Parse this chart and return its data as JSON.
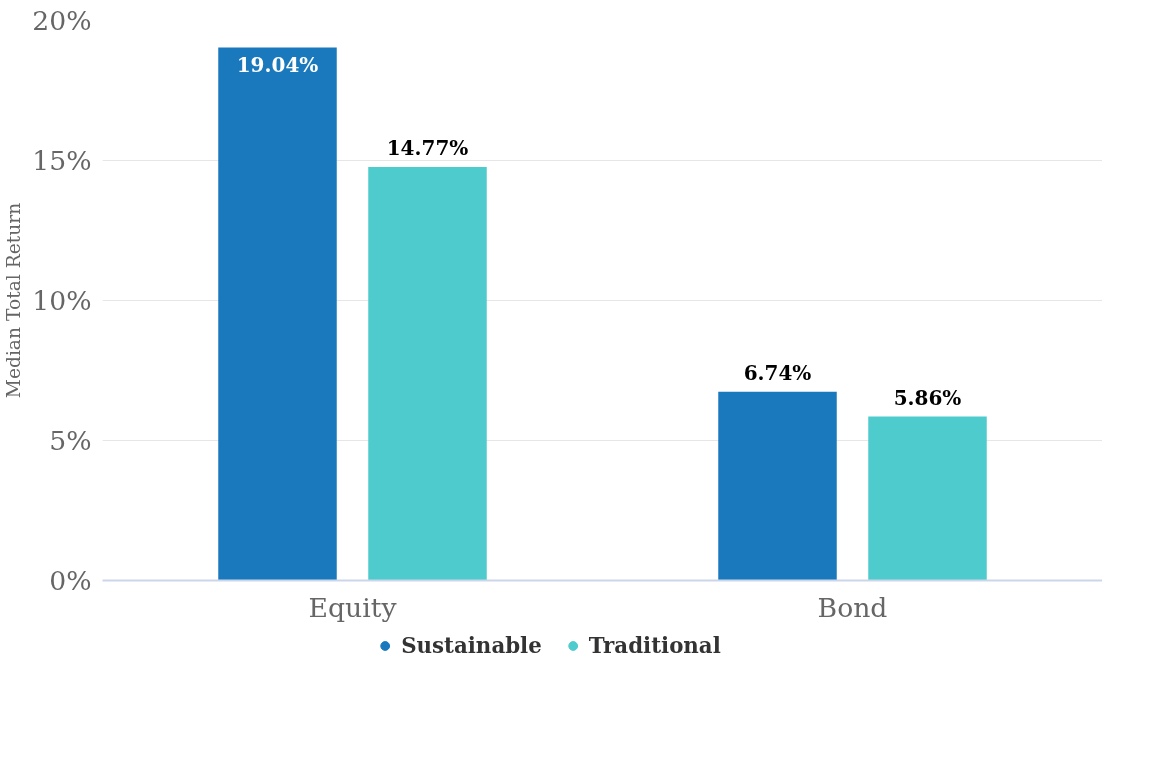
{
  "chart_data": {
    "type": "bar",
    "ylabel": "Median Total Return",
    "categories": [
      "Equity",
      "Bond"
    ],
    "series": [
      {
        "name": "Sustainable",
        "color": "#1a78bc",
        "values": [
          19.04,
          6.74
        ],
        "value_labels": [
          "19.04%",
          "6.74%"
        ]
      },
      {
        "name": "Traditional",
        "color": "#4ecbcc",
        "values": [
          14.77,
          5.86
        ],
        "value_labels": [
          "14.77%",
          "5.86%"
        ]
      }
    ],
    "ylim": [
      0,
      20
    ],
    "yticks": [
      {
        "value": 0,
        "label": "0%"
      },
      {
        "value": 5,
        "label": "5%"
      },
      {
        "value": 10,
        "label": "10%"
      },
      {
        "value": 15,
        "label": "15%"
      },
      {
        "value": 20,
        "label": "20%"
      }
    ],
    "grid": "y",
    "legend": "bottom"
  }
}
